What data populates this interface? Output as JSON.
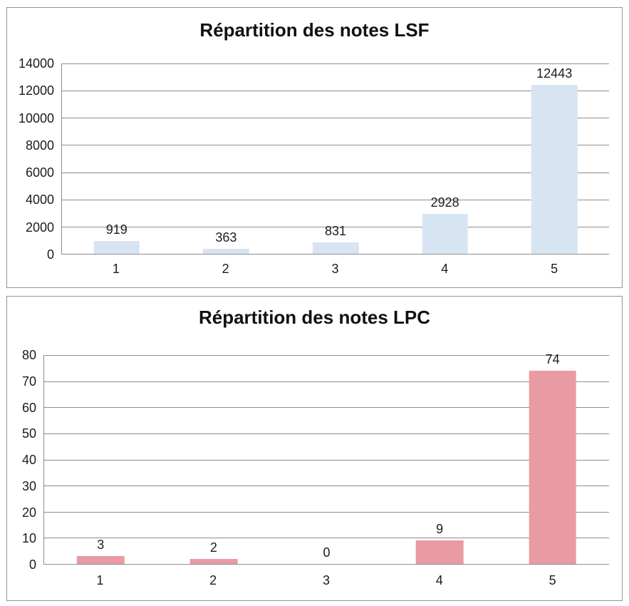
{
  "page": {
    "background": "#ffffff"
  },
  "style": {
    "grid_color": "#8e8e8e",
    "axis_color": "#8e8e8e",
    "panel_border_color": "#949494",
    "text_color": "#1c1c1c",
    "title_color": "#111111"
  },
  "chart_data": [
    {
      "type": "bar",
      "title": "Répartition des notes LSF",
      "categories": [
        "1",
        "2",
        "3",
        "4",
        "5"
      ],
      "values": [
        919,
        363,
        831,
        2928,
        12443
      ],
      "value_labels": [
        "919",
        "363",
        "831",
        "2928",
        "12443"
      ],
      "xlabel": "",
      "ylabel": "",
      "ylim": [
        0,
        14000
      ],
      "ytick_step": 2000,
      "ytick_labels": [
        "0",
        "2000",
        "4000",
        "6000",
        "8000",
        "10000",
        "12000",
        "14000"
      ],
      "bar_color": "#d7e5f3",
      "grid": true,
      "legend": "none"
    },
    {
      "type": "bar",
      "title": "Répartition des notes LPC",
      "categories": [
        "1",
        "2",
        "3",
        "4",
        "5"
      ],
      "values": [
        3,
        2,
        0,
        9,
        74
      ],
      "value_labels": [
        "3",
        "2",
        "0",
        "9",
        "74"
      ],
      "xlabel": "",
      "ylabel": "",
      "ylim": [
        0,
        80
      ],
      "ytick_step": 10,
      "ytick_labels": [
        "0",
        "10",
        "20",
        "30",
        "40",
        "50",
        "60",
        "70",
        "80"
      ],
      "bar_color": "#ea9aa2",
      "grid": true,
      "legend": "none"
    }
  ]
}
